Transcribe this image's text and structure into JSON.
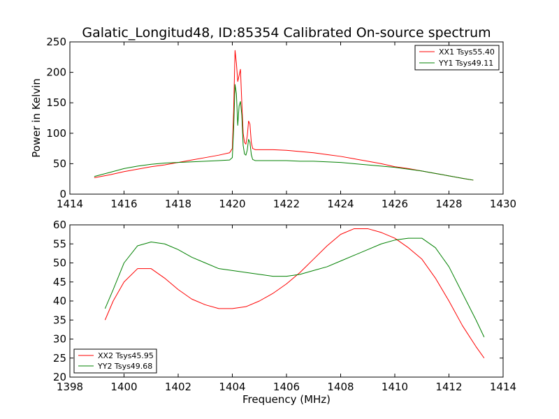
{
  "chart_data": [
    {
      "type": "line",
      "title": "Galatic_Longitud48, ID:85354 Calibrated On-source spectrum",
      "xlabel": "",
      "ylabel": "Power in Kelvin",
      "xlim": [
        1414,
        1430
      ],
      "ylim": [
        0,
        250
      ],
      "xticks": [
        1414,
        1416,
        1418,
        1420,
        1422,
        1424,
        1426,
        1428,
        1430
      ],
      "yticks": [
        0,
        50,
        100,
        150,
        200,
        250
      ],
      "legend_position": "top-right",
      "series": [
        {
          "name": "XX1 Tsys55.40",
          "color": "#ff0000",
          "x": [
            1414.9,
            1415.5,
            1416.0,
            1416.5,
            1417.0,
            1417.5,
            1418.0,
            1418.5,
            1419.0,
            1419.5,
            1419.9,
            1420.0,
            1420.05,
            1420.1,
            1420.15,
            1420.2,
            1420.25,
            1420.3,
            1420.35,
            1420.4,
            1420.45,
            1420.5,
            1420.55,
            1420.6,
            1420.65,
            1420.7,
            1420.75,
            1420.85,
            1421.0,
            1421.5,
            1422.0,
            1422.5,
            1423.0,
            1423.5,
            1424.0,
            1424.5,
            1425.0,
            1425.5,
            1426.0,
            1426.5,
            1427.0,
            1427.5,
            1428.0,
            1428.5,
            1428.9
          ],
          "y": [
            27,
            32,
            37,
            41,
            45,
            48,
            52,
            56,
            60,
            64,
            68,
            75,
            140,
            236,
            215,
            185,
            195,
            205,
            150,
            100,
            85,
            82,
            95,
            120,
            115,
            85,
            75,
            73,
            73,
            73,
            72,
            70,
            68,
            65,
            62,
            58,
            54,
            50,
            45,
            42,
            38,
            34,
            30,
            26,
            23
          ]
        },
        {
          "name": "YY1 Tsys49.11",
          "color": "#008000",
          "x": [
            1414.9,
            1415.5,
            1416.0,
            1416.5,
            1417.0,
            1417.5,
            1418.0,
            1418.5,
            1419.0,
            1419.5,
            1419.9,
            1420.0,
            1420.05,
            1420.1,
            1420.15,
            1420.2,
            1420.25,
            1420.3,
            1420.35,
            1420.4,
            1420.45,
            1420.5,
            1420.55,
            1420.6,
            1420.65,
            1420.7,
            1420.75,
            1420.85,
            1421.0,
            1421.5,
            1422.0,
            1422.5,
            1423.0,
            1423.5,
            1424.0,
            1424.5,
            1425.0,
            1425.5,
            1426.0,
            1426.5,
            1427.0,
            1427.5,
            1428.0,
            1428.5,
            1428.9
          ],
          "y": [
            29,
            36,
            42,
            46,
            49,
            51,
            52,
            53,
            54,
            55,
            56,
            60,
            110,
            180,
            165,
            113,
            145,
            152,
            130,
            80,
            66,
            64,
            72,
            90,
            85,
            65,
            57,
            55,
            55,
            55,
            55,
            54,
            54,
            53,
            52,
            50,
            48,
            46,
            44,
            41,
            38,
            34,
            30,
            26,
            23
          ]
        }
      ]
    },
    {
      "type": "line",
      "title": "",
      "xlabel": "Frequency (MHz)",
      "ylabel": "",
      "xlim": [
        1398,
        1414
      ],
      "ylim": [
        20,
        60
      ],
      "xticks": [
        1398,
        1400,
        1402,
        1404,
        1406,
        1408,
        1410,
        1412,
        1414
      ],
      "yticks": [
        20,
        25,
        30,
        35,
        40,
        45,
        50,
        55,
        60
      ],
      "legend_position": "bottom-left",
      "series": [
        {
          "name": "XX2 Tsys45.95",
          "color": "#ff0000",
          "x": [
            1399.3,
            1399.6,
            1400.0,
            1400.5,
            1401.0,
            1401.5,
            1402.0,
            1402.5,
            1403.0,
            1403.5,
            1404.0,
            1404.5,
            1405.0,
            1405.5,
            1406.0,
            1406.5,
            1407.0,
            1407.5,
            1408.0,
            1408.5,
            1409.0,
            1409.5,
            1410.0,
            1410.5,
            1411.0,
            1411.5,
            1412.0,
            1412.5,
            1413.0,
            1413.3
          ],
          "y": [
            35,
            40,
            45,
            48.5,
            48.5,
            46,
            43,
            40.5,
            39,
            38,
            38,
            38.5,
            40,
            42,
            44.5,
            47.5,
            51,
            54.5,
            57.5,
            59,
            59,
            58,
            56.5,
            54,
            51,
            46,
            40,
            33.5,
            28,
            25
          ]
        },
        {
          "name": "YY2 Tsys49.68",
          "color": "#008000",
          "x": [
            1399.3,
            1399.6,
            1400.0,
            1400.5,
            1401.0,
            1401.5,
            1402.0,
            1402.5,
            1403.0,
            1403.5,
            1404.0,
            1404.5,
            1405.0,
            1405.5,
            1406.0,
            1406.5,
            1407.0,
            1407.5,
            1408.0,
            1408.5,
            1409.0,
            1409.5,
            1410.0,
            1410.5,
            1411.0,
            1411.5,
            1412.0,
            1412.5,
            1413.0,
            1413.3
          ],
          "y": [
            38,
            43,
            50,
            54.5,
            55.5,
            55,
            53.5,
            51.5,
            50,
            48.5,
            48,
            47.5,
            47,
            46.5,
            46.5,
            47,
            48,
            49,
            50.5,
            52,
            53.5,
            55,
            56,
            56.5,
            56.5,
            54,
            49,
            42,
            35,
            30.5
          ]
        }
      ]
    }
  ]
}
